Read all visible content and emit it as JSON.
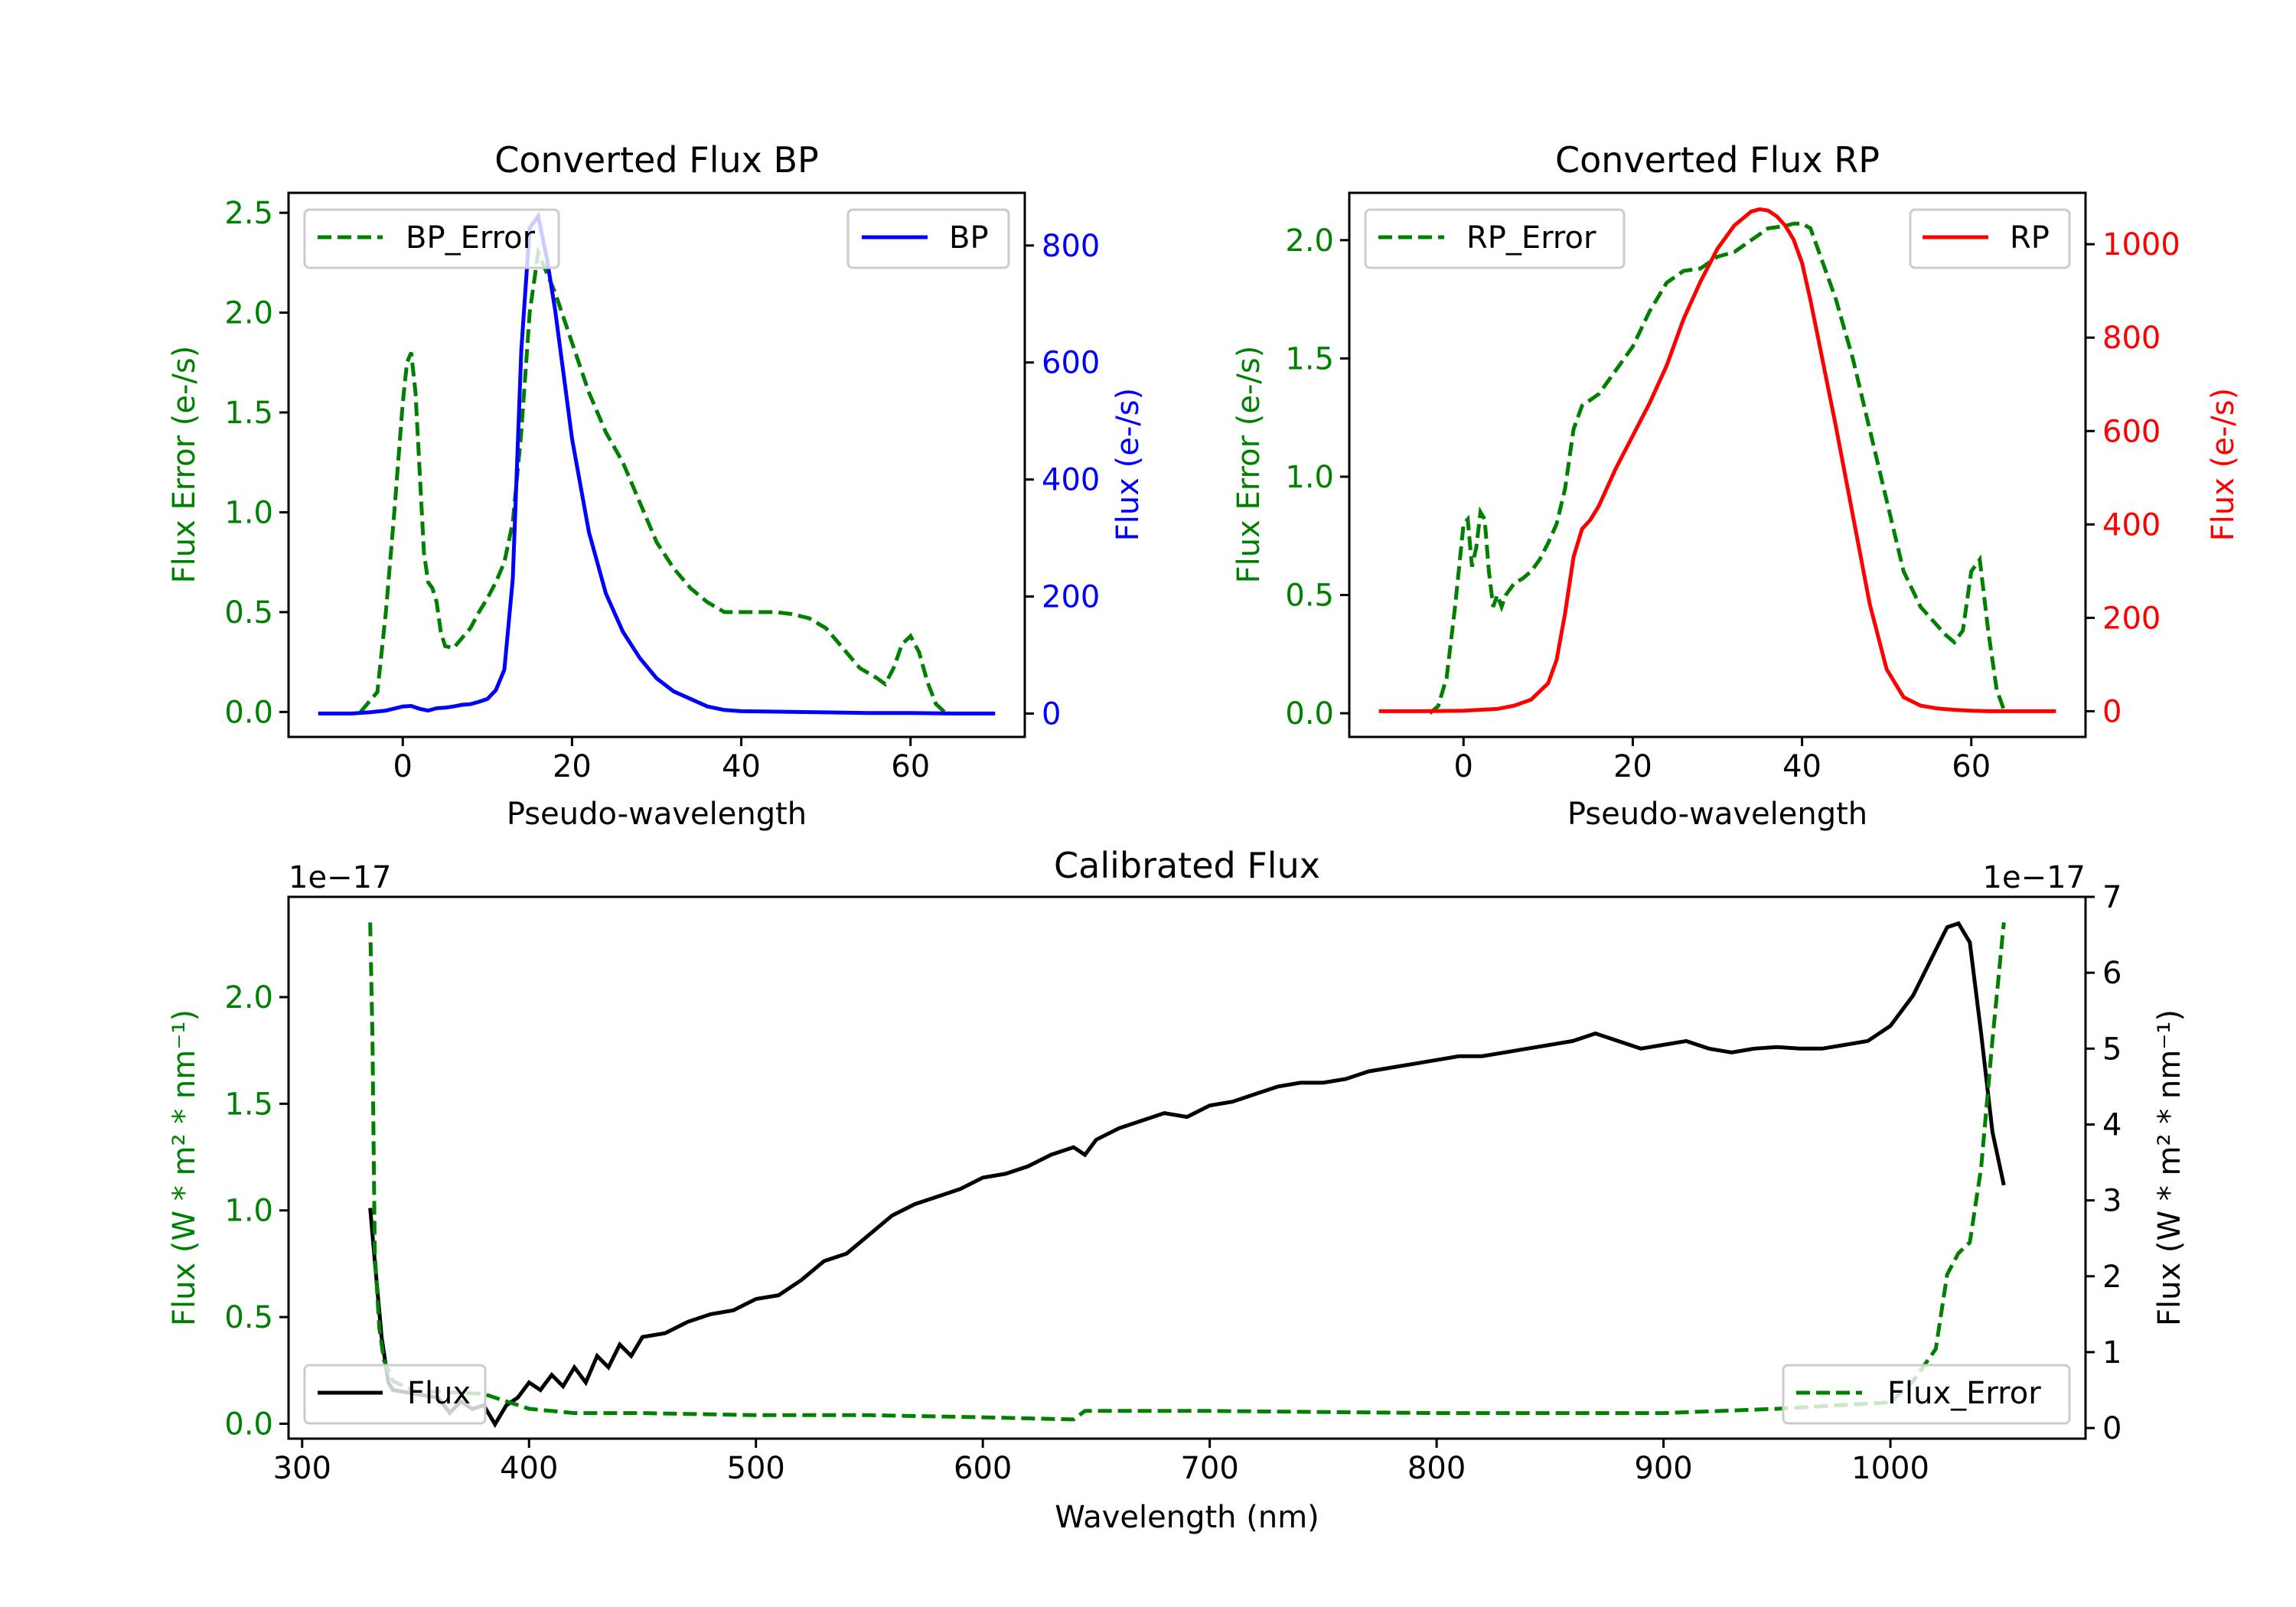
{
  "chart_data": [
    {
      "type": "line",
      "title": "Converted Flux BP",
      "xlabel": "Pseudo-wavelength",
      "ylabel_left": "Flux Error (e-/s)",
      "ylabel_right": "Flux (e-/s)",
      "xlim": [
        -13.5,
        73.5
      ],
      "ylim_left": [
        -0.125,
        2.6
      ],
      "ylim_right": [
        -40,
        890
      ],
      "xticks": [
        0,
        20,
        40,
        60
      ],
      "yticks_left": [
        "0.0",
        "0.5",
        "1.0",
        "1.5",
        "2.0",
        "2.5"
      ],
      "yticks_right": [
        "0",
        "200",
        "400",
        "600",
        "800"
      ],
      "series": [
        {
          "name": "BP_Error",
          "axis": "left",
          "color": "#008000",
          "dash": "dashed",
          "x": [
            -5,
            -3,
            -2,
            -1,
            0,
            0.5,
            1,
            1.5,
            2,
            2.5,
            3,
            3.5,
            4,
            4.5,
            5,
            6,
            7,
            8,
            9,
            10,
            11,
            12,
            13,
            14,
            15,
            16,
            17,
            18,
            20,
            22,
            24,
            26,
            28,
            30,
            32,
            34,
            36,
            38,
            40,
            42,
            44,
            46,
            48,
            50,
            52,
            54,
            56,
            57,
            58,
            59,
            60,
            61,
            62,
            63,
            64
          ],
          "y": [
            0.0,
            0.1,
            0.5,
            1.0,
            1.55,
            1.75,
            1.8,
            1.6,
            1.2,
            0.8,
            0.65,
            0.62,
            0.55,
            0.4,
            0.33,
            0.32,
            0.37,
            0.42,
            0.5,
            0.57,
            0.65,
            0.75,
            0.95,
            1.4,
            2.0,
            2.3,
            2.2,
            2.1,
            1.85,
            1.6,
            1.4,
            1.25,
            1.05,
            0.85,
            0.72,
            0.62,
            0.55,
            0.5,
            0.5,
            0.5,
            0.5,
            0.49,
            0.47,
            0.42,
            0.32,
            0.22,
            0.17,
            0.14,
            0.22,
            0.34,
            0.38,
            0.3,
            0.15,
            0.04,
            0.0
          ]
        },
        {
          "name": "BP",
          "axis": "right",
          "color": "#0000ff",
          "dash": "solid",
          "x": [
            -10,
            -6,
            -4,
            -2,
            0,
            1,
            2,
            3,
            4,
            5,
            6,
            7,
            8,
            9,
            10,
            11,
            12,
            13,
            14,
            15,
            16,
            17,
            18,
            19,
            20,
            22,
            24,
            26,
            28,
            30,
            32,
            34,
            36,
            38,
            40,
            45,
            50,
            55,
            60,
            65,
            70
          ],
          "y": [
            0,
            0,
            2,
            5,
            12,
            13,
            8,
            5,
            9,
            10,
            12,
            15,
            16,
            20,
            25,
            40,
            75,
            230,
            620,
            830,
            850,
            780,
            690,
            580,
            470,
            310,
            205,
            140,
            95,
            60,
            38,
            25,
            12,
            6,
            4,
            3,
            2,
            1,
            1,
            0,
            0
          ]
        }
      ],
      "legend": [
        {
          "label": "BP_Error",
          "position": "upper-left"
        },
        {
          "label": "BP",
          "position": "upper-right"
        }
      ]
    },
    {
      "type": "line",
      "title": "Converted Flux RP",
      "xlabel": "Pseudo-wavelength",
      "ylabel_left": "Flux Error (e-/s)",
      "ylabel_right": "Flux (e-/s)",
      "xlim": [
        -13.5,
        73.5
      ],
      "ylim_left": [
        -0.1,
        2.2
      ],
      "ylim_right": [
        -55,
        1110
      ],
      "xticks": [
        0,
        20,
        40,
        60
      ],
      "yticks_left": [
        "0.0",
        "0.5",
        "1.0",
        "1.5",
        "2.0"
      ],
      "yticks_right": [
        "0",
        "200",
        "400",
        "600",
        "800",
        "1000"
      ],
      "series": [
        {
          "name": "RP_Error",
          "axis": "left",
          "color": "#008000",
          "dash": "dashed",
          "x": [
            -4,
            -3,
            -2,
            -1,
            0,
            0.5,
            1,
            1.5,
            2,
            2.5,
            3,
            3.5,
            4,
            4.5,
            5,
            6,
            7,
            8,
            9,
            10,
            11,
            12,
            13,
            14,
            16,
            18,
            20,
            22,
            24,
            26,
            28,
            30,
            32,
            34,
            36,
            38,
            39,
            40,
            41,
            42,
            44,
            46,
            48,
            50,
            52,
            54,
            56,
            57,
            58,
            59,
            60,
            61,
            62,
            63,
            64
          ],
          "y": [
            0.0,
            0.03,
            0.15,
            0.45,
            0.8,
            0.82,
            0.62,
            0.7,
            0.85,
            0.82,
            0.6,
            0.45,
            0.5,
            0.45,
            0.5,
            0.55,
            0.57,
            0.6,
            0.65,
            0.72,
            0.8,
            0.95,
            1.2,
            1.3,
            1.35,
            1.45,
            1.55,
            1.7,
            1.82,
            1.87,
            1.88,
            1.93,
            1.95,
            2.0,
            2.05,
            2.06,
            2.07,
            2.07,
            2.05,
            1.95,
            1.75,
            1.5,
            1.2,
            0.9,
            0.6,
            0.45,
            0.37,
            0.33,
            0.3,
            0.35,
            0.6,
            0.65,
            0.35,
            0.1,
            0.0
          ]
        },
        {
          "name": "RP",
          "axis": "right",
          "color": "#ff0000",
          "dash": "solid",
          "x": [
            -10,
            -5,
            0,
            4,
            6,
            8,
            10,
            11,
            12,
            13,
            14,
            15,
            16,
            18,
            20,
            22,
            24,
            26,
            28,
            30,
            32,
            34,
            35,
            36,
            37,
            38,
            39,
            40,
            41,
            42,
            44,
            46,
            48,
            50,
            52,
            54,
            56,
            58,
            60,
            62,
            64,
            66,
            70
          ],
          "y": [
            0,
            0,
            1,
            5,
            12,
            25,
            60,
            110,
            210,
            330,
            390,
            410,
            440,
            520,
            590,
            660,
            740,
            840,
            920,
            990,
            1040,
            1070,
            1075,
            1072,
            1060,
            1040,
            1010,
            960,
            880,
            790,
            610,
            420,
            230,
            90,
            30,
            12,
            6,
            3,
            1,
            0,
            0,
            0,
            0
          ]
        }
      ],
      "legend": [
        {
          "label": "RP_Error",
          "position": "upper-left"
        },
        {
          "label": "RP",
          "position": "upper-right"
        }
      ]
    },
    {
      "type": "line",
      "title": "Calibrated Flux",
      "xlabel": "Wavelength (nm)",
      "ylabel_left": "Flux (W * m² * nm⁻¹)",
      "ylabel_right": "Flux (W * m² * nm⁻¹)",
      "offset_left": "1e−17",
      "offset_right": "1e−17",
      "xlim": [
        294,
        1086
      ],
      "ylim_left": [
        -0.07,
        2.47
      ],
      "ylim_right": [
        -0.14,
        7.0
      ],
      "xticks": [
        300,
        400,
        500,
        600,
        700,
        800,
        900,
        1000
      ],
      "yticks_left": [
        "0.0",
        "0.5",
        "1.0",
        "1.5",
        "2.0"
      ],
      "yticks_right": [
        "0",
        "1",
        "2",
        "3",
        "4",
        "5",
        "6",
        "7"
      ],
      "series": [
        {
          "name": "Flux",
          "axis": "right",
          "color": "#000000",
          "dash": "solid",
          "x": [
            330,
            332,
            335,
            338,
            340,
            350,
            360,
            365,
            370,
            375,
            380,
            385,
            390,
            395,
            400,
            405,
            410,
            415,
            420,
            425,
            430,
            435,
            440,
            445,
            450,
            460,
            470,
            480,
            490,
            500,
            510,
            520,
            530,
            540,
            550,
            560,
            570,
            580,
            590,
            600,
            610,
            620,
            630,
            640,
            645,
            650,
            660,
            670,
            680,
            690,
            700,
            710,
            720,
            730,
            740,
            750,
            760,
            770,
            780,
            790,
            800,
            810,
            820,
            830,
            840,
            850,
            860,
            870,
            880,
            890,
            900,
            910,
            920,
            930,
            940,
            950,
            960,
            970,
            980,
            990,
            1000,
            1010,
            1020,
            1025,
            1030,
            1035,
            1040,
            1045,
            1050
          ],
          "y": [
            2.9,
            2.2,
            1.2,
            0.6,
            0.5,
            0.45,
            0.4,
            0.2,
            0.35,
            0.25,
            0.3,
            0.05,
            0.3,
            0.4,
            0.6,
            0.5,
            0.7,
            0.55,
            0.8,
            0.6,
            0.95,
            0.8,
            1.1,
            0.95,
            1.2,
            1.25,
            1.4,
            1.5,
            1.55,
            1.7,
            1.75,
            1.95,
            2.2,
            2.3,
            2.55,
            2.8,
            2.95,
            3.05,
            3.15,
            3.3,
            3.35,
            3.45,
            3.6,
            3.7,
            3.6,
            3.8,
            3.95,
            4.05,
            4.15,
            4.1,
            4.25,
            4.3,
            4.4,
            4.5,
            4.55,
            4.55,
            4.6,
            4.7,
            4.75,
            4.8,
            4.85,
            4.9,
            4.9,
            4.95,
            5.0,
            5.05,
            5.1,
            5.2,
            5.1,
            5.0,
            5.05,
            5.1,
            5.0,
            4.95,
            5.0,
            5.02,
            5.0,
            5.0,
            5.05,
            5.1,
            5.3,
            5.7,
            6.3,
            6.6,
            6.65,
            6.4,
            5.2,
            3.9,
            3.2
          ]
        },
        {
          "name": "Flux_Error",
          "axis": "left",
          "color": "#008000",
          "dash": "dashed",
          "x": [
            330,
            331,
            332,
            334,
            336,
            340,
            350,
            360,
            380,
            400,
            420,
            450,
            500,
            550,
            600,
            640,
            645,
            700,
            800,
            900,
            950,
            1000,
            1010,
            1020,
            1025,
            1030,
            1035,
            1040,
            1045,
            1050
          ],
          "y": [
            2.35,
            1.8,
            0.8,
            0.45,
            0.3,
            0.2,
            0.15,
            0.15,
            0.14,
            0.07,
            0.05,
            0.05,
            0.04,
            0.04,
            0.03,
            0.02,
            0.06,
            0.06,
            0.05,
            0.05,
            0.07,
            0.1,
            0.2,
            0.35,
            0.7,
            0.8,
            0.85,
            1.2,
            1.8,
            2.35
          ]
        }
      ],
      "legend": [
        {
          "label": "Flux",
          "position": "lower-left"
        },
        {
          "label": "Flux_Error",
          "position": "lower-right"
        }
      ]
    }
  ]
}
